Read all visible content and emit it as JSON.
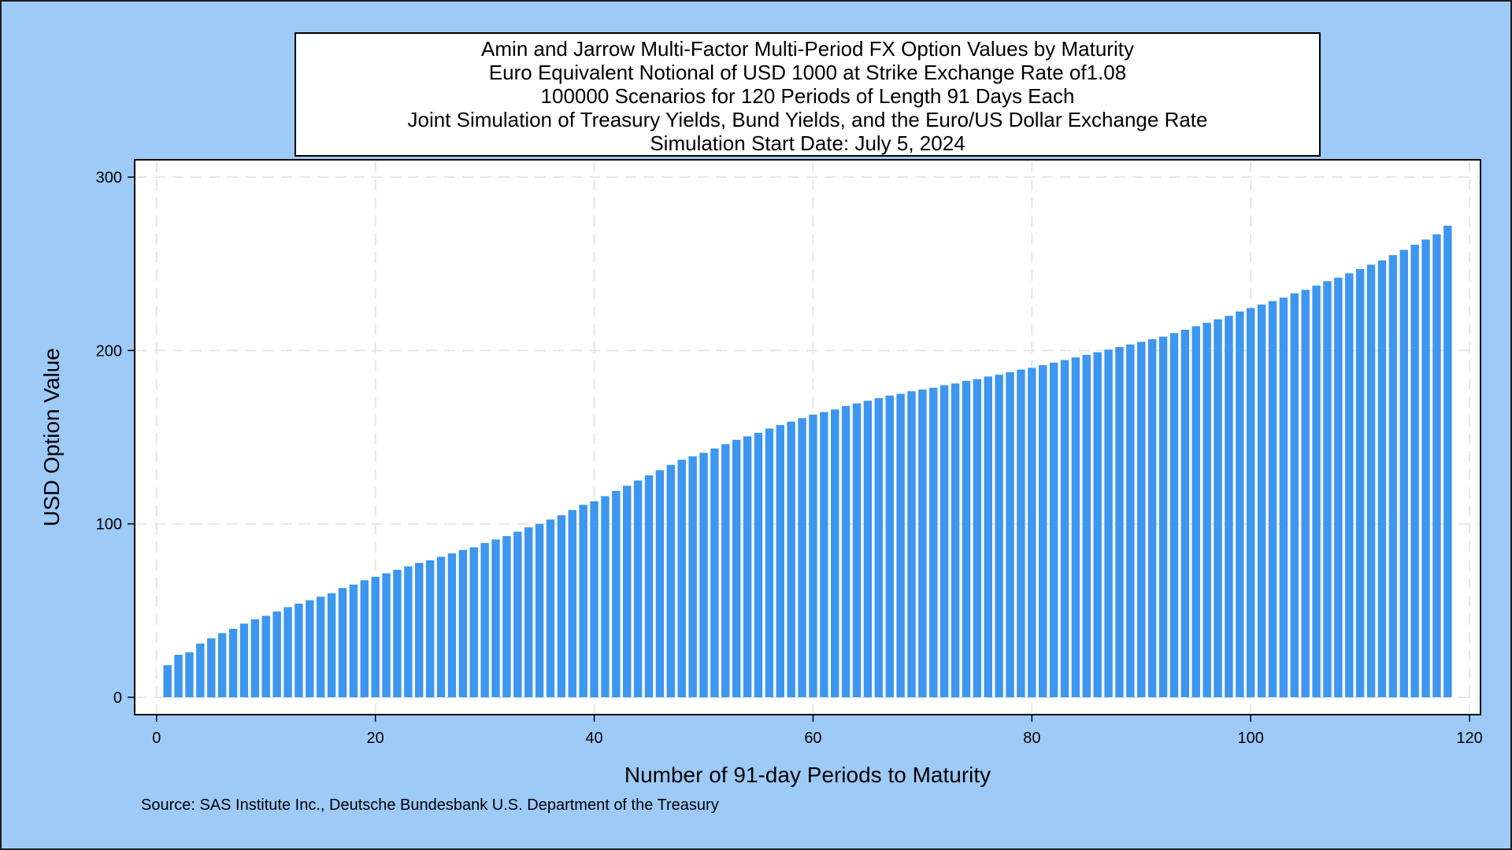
{
  "chart_data": {
    "type": "bar",
    "title_lines": [
      "Amin and Jarrow Multi-Factor Multi-Period FX Option Values by Maturity",
      "Euro Equivalent Notional of USD 1000 at Strike Exchange Rate of1.08",
      "100000 Scenarios for 120 Periods of Length 91 Days Each",
      "Joint Simulation of Treasury Yields, Bund Yields, and the Euro/US Dollar Exchange Rate",
      "Simulation Start Date: July 5, 2024"
    ],
    "xlabel": "Number of 91-day Periods to Maturity",
    "ylabel": "USD Option Value",
    "xlim": [
      -2,
      121
    ],
    "ylim": [
      -10,
      310
    ],
    "xticks": [
      0,
      20,
      40,
      60,
      80,
      100,
      120
    ],
    "yticks": [
      0,
      100,
      200,
      300
    ],
    "grid": true,
    "bar_color": "#3d96ef",
    "x": [
      1,
      2,
      3,
      4,
      5,
      6,
      7,
      8,
      9,
      10,
      11,
      12,
      13,
      14,
      15,
      16,
      17,
      18,
      19,
      20,
      21,
      22,
      23,
      24,
      25,
      26,
      27,
      28,
      29,
      30,
      31,
      32,
      33,
      34,
      35,
      36,
      37,
      38,
      39,
      40,
      41,
      42,
      43,
      44,
      45,
      46,
      47,
      48,
      49,
      50,
      51,
      52,
      53,
      54,
      55,
      56,
      57,
      58,
      59,
      60,
      61,
      62,
      63,
      64,
      65,
      66,
      67,
      68,
      69,
      70,
      71,
      72,
      73,
      74,
      75,
      76,
      77,
      78,
      79,
      80,
      81,
      82,
      83,
      84,
      85,
      86,
      87,
      88,
      89,
      90,
      91,
      92,
      93,
      94,
      95,
      96,
      97,
      98,
      99,
      100,
      101,
      102,
      103,
      104,
      105,
      106,
      107,
      108,
      109,
      110,
      111,
      112,
      113,
      114,
      115,
      116,
      117,
      118
    ],
    "values": [
      18.5,
      24.5,
      26,
      31,
      34,
      37,
      39.5,
      42.5,
      45,
      47,
      49.5,
      52,
      54,
      56,
      58,
      60,
      63,
      65,
      67.5,
      69.5,
      71.5,
      73.5,
      75.5,
      77.5,
      79,
      81,
      83,
      85,
      86.5,
      89,
      91,
      93,
      95.5,
      98,
      100,
      102.5,
      105,
      108,
      111,
      113,
      116,
      119,
      122,
      125,
      128,
      131,
      134,
      137,
      139,
      141,
      143.5,
      146,
      148.5,
      150.5,
      152.5,
      155,
      157,
      159,
      161,
      163,
      164.5,
      166,
      168,
      169.5,
      171,
      172.5,
      174,
      175,
      176.5,
      177.5,
      178.5,
      180,
      181,
      182.5,
      183.5,
      185,
      186,
      187.5,
      189,
      190,
      191.5,
      193,
      194.5,
      196,
      197.5,
      199,
      200.5,
      202,
      203.5,
      205,
      206.5,
      208,
      210,
      212,
      214,
      216,
      218,
      220,
      222.5,
      224.5,
      226.5,
      228.5,
      230.5,
      233,
      235,
      237.5,
      240,
      242,
      244.5,
      247,
      249.5,
      252,
      255,
      258,
      261,
      264,
      267,
      272
    ]
  },
  "source_note": "Source: SAS Institute Inc., Deutsche Bundesbank U.S. Department of the Treasury",
  "colors": {
    "background": "#9dcaf7",
    "plot_area": "#ffffff",
    "grid": "#e6e6e6",
    "bars": "#3d96ef"
  }
}
